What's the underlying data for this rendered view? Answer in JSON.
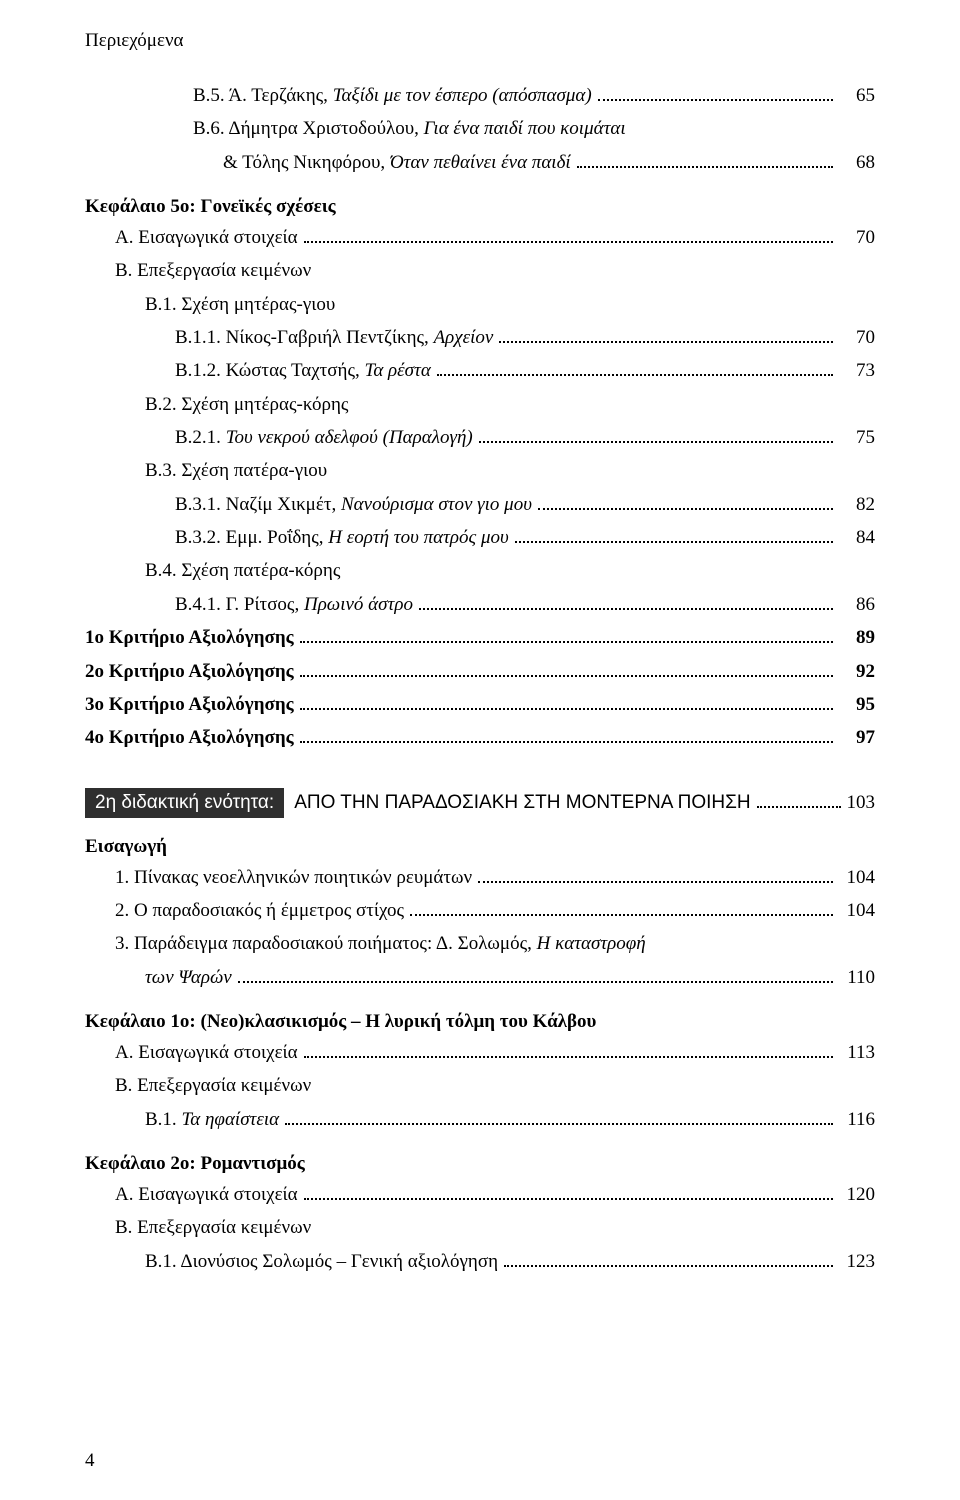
{
  "header": "Περιεχόμενα",
  "block1": [
    {
      "indent": 2,
      "text": "Β.5. Ά. Τερζάκης, ",
      "italic": "Ταξίδι με τον έσπερο (απόσπασμα)",
      "page": "65"
    },
    {
      "indent": 2,
      "text": "Β.6. Δήμητρα Χριστοδούλου, ",
      "italic": "Για ένα παιδί που κοιμάται",
      "nopagel": true
    },
    {
      "indent": 3,
      "text": "& Τόλης Νικηφόρου, ",
      "italic": "Όταν πεθαίνει ένα παιδί",
      "page": "68"
    }
  ],
  "chapter5": {
    "title": "Κεφάλαιο 5ο: Γονεϊκές σχέσεις",
    "lines": [
      {
        "indent": 0,
        "text": "Α. Εισαγωγικά στοιχεία",
        "page": "70"
      },
      {
        "indent": 0,
        "text": "Β. Επεξεργασία κειμένων",
        "nopagel": true,
        "nodots": true
      },
      {
        "indent": 1,
        "text": "Β.1. Σχέση μητέρας-γιου",
        "nopagel": true,
        "nodots": true
      },
      {
        "indent": 2,
        "text": "Β.1.1. Νίκος-Γαβριήλ Πεντζίκης, ",
        "italic": "Αρχείον",
        "page": "70"
      },
      {
        "indent": 2,
        "text": "Β.1.2. Κώστας Ταχτσής, ",
        "italic": "Τα ρέστα",
        "page": "73"
      },
      {
        "indent": 1,
        "text": "Β.2. Σχέση μητέρας-κόρης",
        "nopagel": true,
        "nodots": true
      },
      {
        "indent": 2,
        "text": "Β.2.1. ",
        "italic": "Του νεκρού αδελφού (Παραλογή)",
        "page": "75"
      },
      {
        "indent": 1,
        "text": "Β.3. Σχέση πατέρα-γιου",
        "nopagel": true,
        "nodots": true
      },
      {
        "indent": 2,
        "text": "Β.3.1. Ναζίμ Χικμέτ, ",
        "italic": "Νανούρισμα στον γιο μου",
        "page": "82"
      },
      {
        "indent": 2,
        "text": "Β.3.2. Εμμ. Ροΐδης, ",
        "italic": "Η εορτή του πατρός μου",
        "page": "84"
      },
      {
        "indent": 1,
        "text": "Β.4. Σχέση πατέρα-κόρης",
        "nopagel": true,
        "nodots": true
      },
      {
        "indent": 2,
        "text": "Β.4.1. Γ. Ρίτσος, ",
        "italic": "Πρωινό άστρο",
        "page": "86"
      }
    ]
  },
  "criteria": [
    {
      "text": "1ο Κριτήριο Αξιολόγησης",
      "page": "89"
    },
    {
      "text": "2ο Κριτήριο Αξιολόγησης",
      "page": "92"
    },
    {
      "text": "3ο Κριτήριο Αξιολόγησης",
      "page": "95"
    },
    {
      "text": "4ο Κριτήριο Αξιολόγησης",
      "page": "97"
    }
  ],
  "section2": {
    "label": "2η διδακτική ενότητα:",
    "title": "ΑΠΟ ΤΗΝ ΠΑΡΑΔΟΣΙΑΚΗ ΣΤΗ ΜΟΝΤΕΡΝΑ ΠΟΙΗΣΗ",
    "page": "103"
  },
  "intro": {
    "title": "Εισαγωγή",
    "lines": [
      {
        "indent": 0,
        "text": "1. Πίνακας νεοελληνικών ποιητικών ρευμάτων",
        "page": "104"
      },
      {
        "indent": 0,
        "text": "2. Ο παραδοσιακός ή έμμετρος στίχος",
        "page": "104"
      },
      {
        "indent": 0,
        "text": "3. Παράδειγμα παραδοσιακού ποιήματος: Δ. Σολωμός, ",
        "italic": "Η καταστροφή",
        "nopagel": true,
        "nodots": true
      },
      {
        "indent": 1,
        "italic": "των Ψαρών",
        "page": "110"
      }
    ]
  },
  "chapter1b": {
    "title": "Κεφάλαιο 1ο: (Νεο)κλασικισμός – Η λυρική τόλμη του Κάλβου",
    "lines": [
      {
        "indent": 0,
        "text": "Α. Εισαγωγικά στοιχεία",
        "page": "113"
      },
      {
        "indent": 0,
        "text": "Β. Επεξεργασία κειμένων",
        "nopagel": true,
        "nodots": true
      },
      {
        "indent": 1,
        "text": "Β.1. ",
        "italic": "Τα ηφαίστεια",
        "page": "116"
      }
    ]
  },
  "chapter2b": {
    "title": "Κεφάλαιο 2ο: Ρομαντισμός",
    "lines": [
      {
        "indent": 0,
        "text": "Α. Εισαγωγικά στοιχεία",
        "page": "120"
      },
      {
        "indent": 0,
        "text": "Β. Επεξεργασία κειμένων",
        "nopagel": true,
        "nodots": true
      },
      {
        "indent": 1,
        "text": "Β.1. Διονύσιος Σολωμός – Γενική αξιολόγηση",
        "page": "123"
      }
    ]
  },
  "page_number": "4"
}
